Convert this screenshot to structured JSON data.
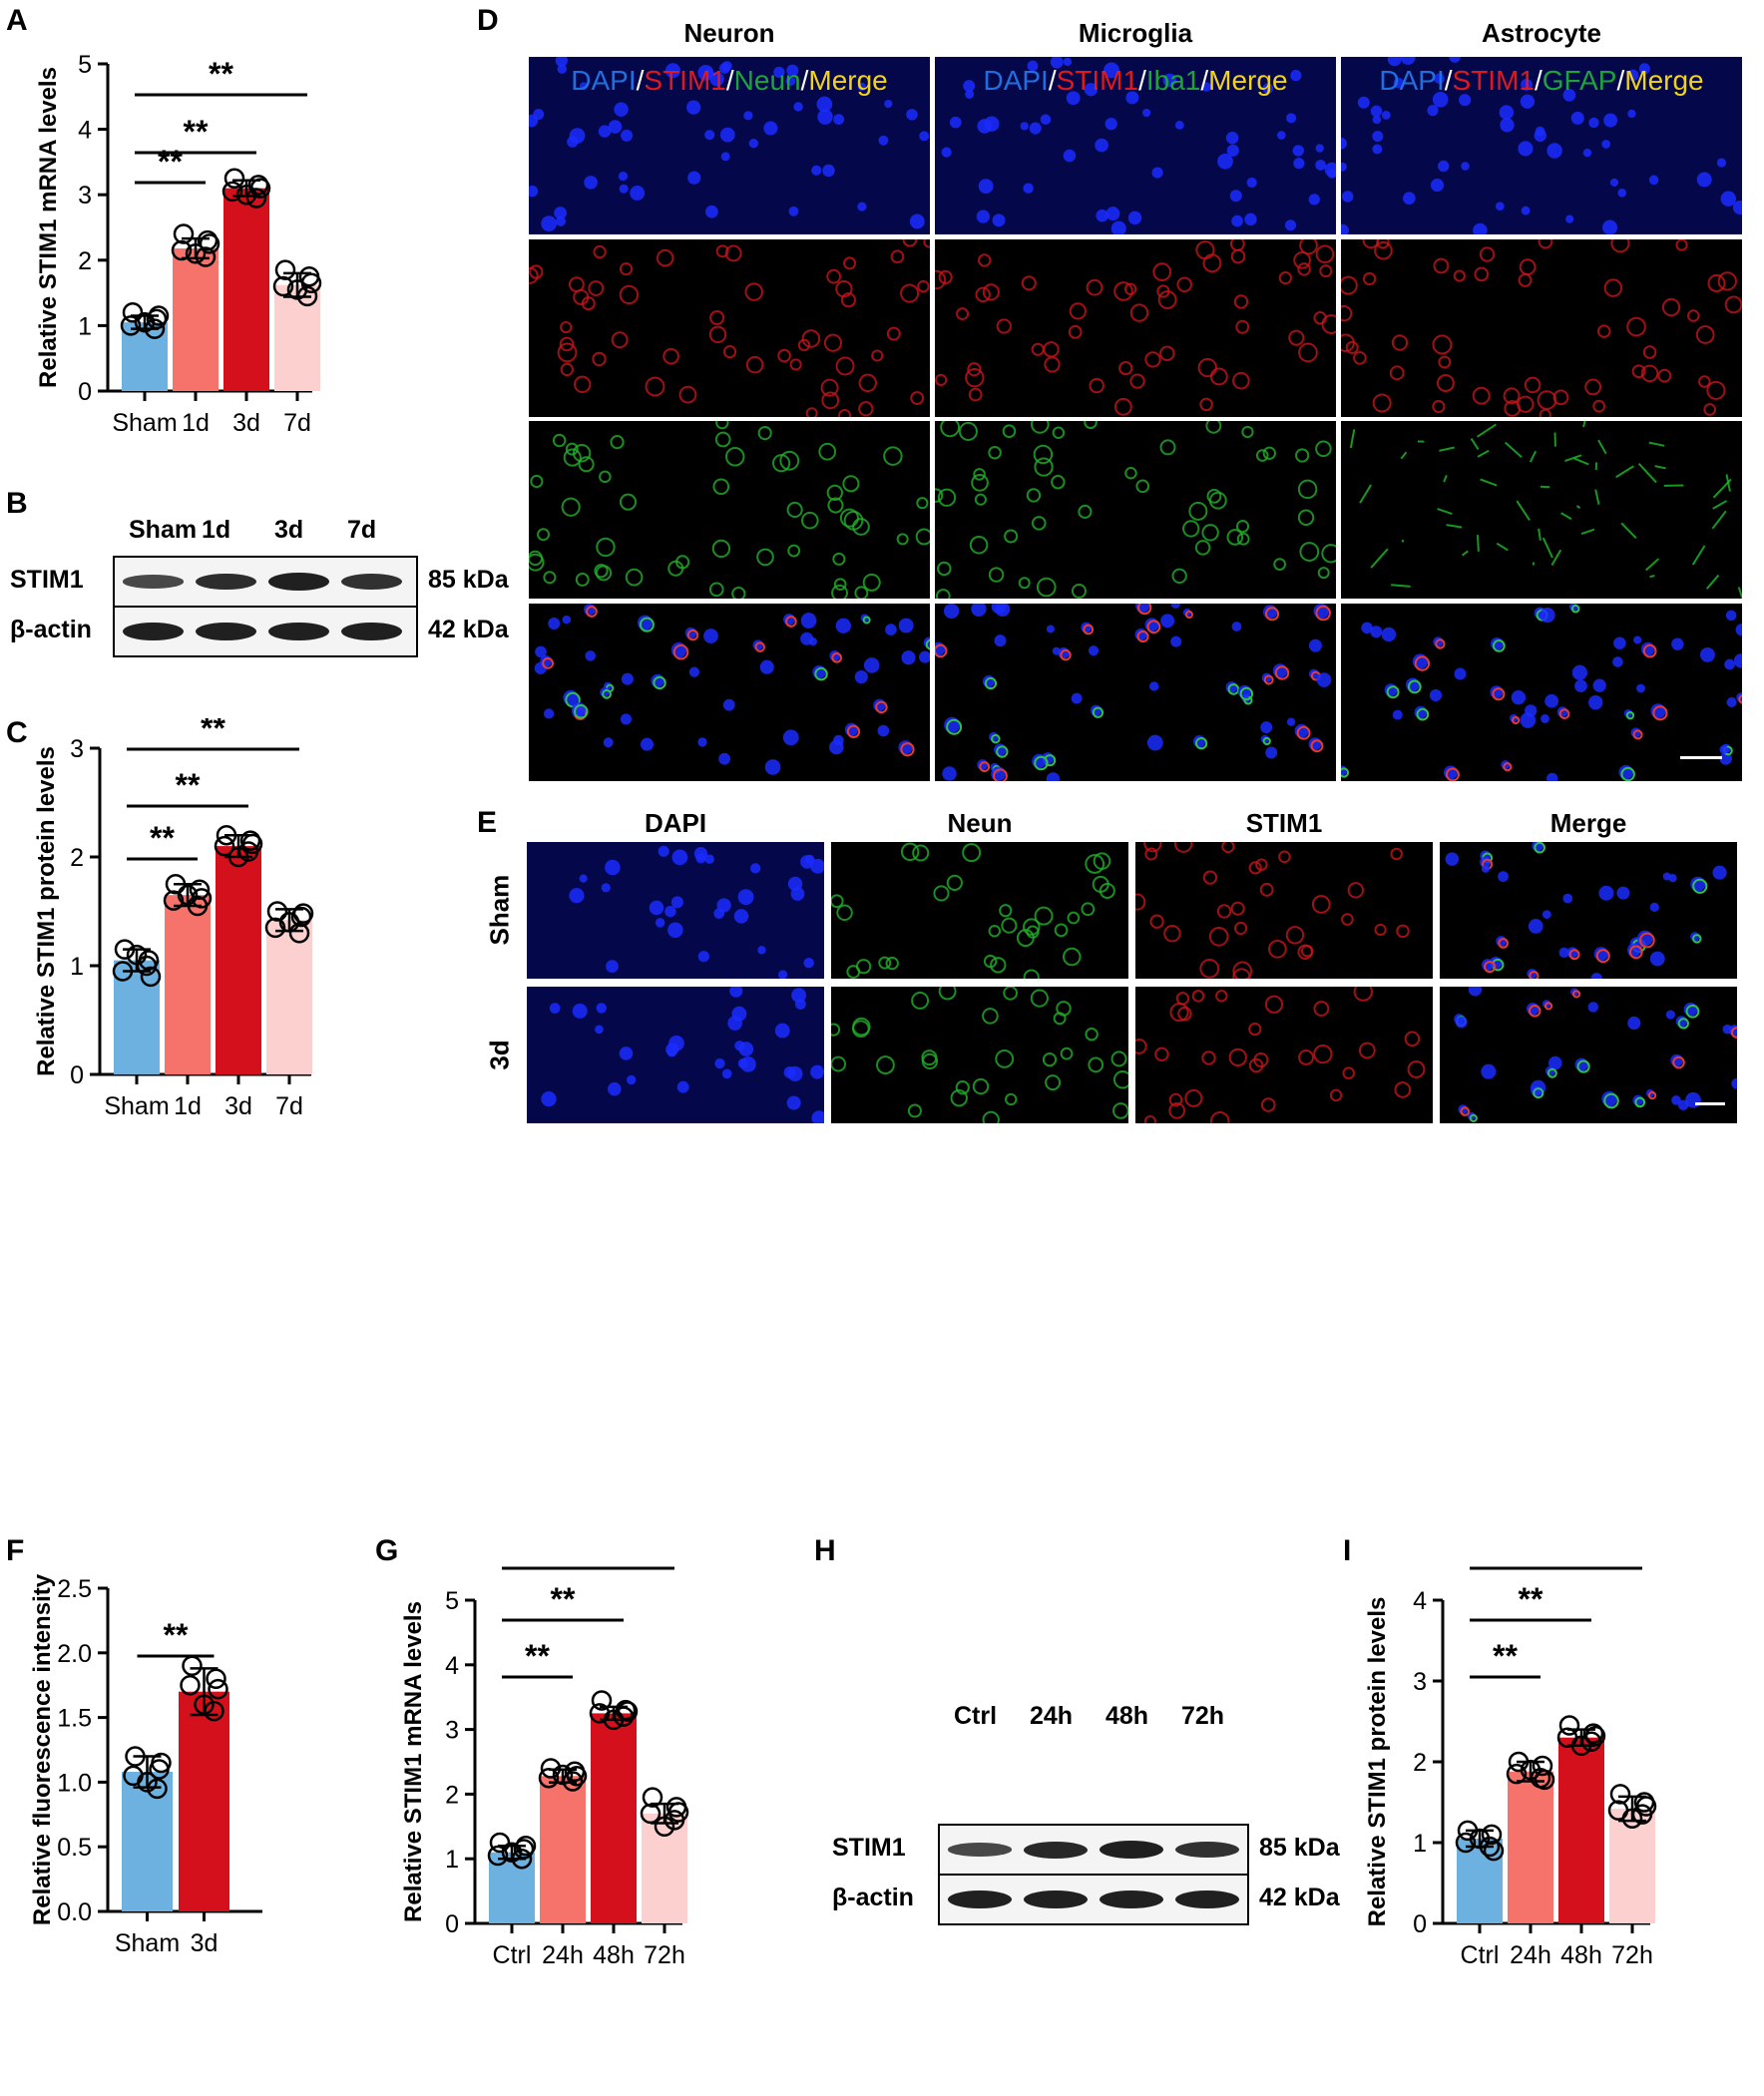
{
  "panels": {
    "A": "A",
    "B": "B",
    "C": "C",
    "D": "D",
    "E": "E",
    "F": "F",
    "G": "G",
    "H": "H",
    "I": "I"
  },
  "significance": "**",
  "colors": {
    "sham": "#6cb1e0",
    "early": "#f6736b",
    "peak": "#d4101c",
    "late": "#fbd0cf"
  },
  "western_B": {
    "lanes": [
      "Sham",
      "1d",
      "3d",
      "7d"
    ],
    "rows": [
      {
        "label": "STIM1",
        "kda": "85 kDa",
        "intensity": [
          0.55,
          0.85,
          1.0,
          0.8
        ]
      },
      {
        "label": "β-actin",
        "kda": "42 kDa",
        "intensity": [
          1.0,
          1.0,
          1.0,
          1.0
        ]
      }
    ]
  },
  "western_H": {
    "lanes": [
      "Ctrl",
      "24h",
      "48h",
      "72h"
    ],
    "rows": [
      {
        "label": "STIM1",
        "kda": "85 kDa",
        "intensity": [
          0.55,
          0.9,
          1.0,
          0.8
        ]
      },
      {
        "label": "β-actin",
        "kda": "42 kDa",
        "intensity": [
          1.0,
          1.0,
          1.0,
          1.0
        ]
      }
    ]
  },
  "panel_D": {
    "columns": [
      "Neuron",
      "Microglia",
      "Astrocyte"
    ],
    "channel_labels": [
      [
        {
          "t": "DAPI",
          "c": "#1f6fe0"
        },
        {
          "t": "/",
          "c": "#ffffff"
        },
        {
          "t": "STIM1",
          "c": "#e0191e"
        },
        {
          "t": "/",
          "c": "#ffffff"
        },
        {
          "t": "Neun",
          "c": "#1ea33a"
        },
        {
          "t": "/",
          "c": "#ffffff"
        },
        {
          "t": "Merge",
          "c": "#f1d21c"
        }
      ],
      [
        {
          "t": "DAPI",
          "c": "#1f6fe0"
        },
        {
          "t": "/",
          "c": "#ffffff"
        },
        {
          "t": "STIM1",
          "c": "#e0191e"
        },
        {
          "t": "/",
          "c": "#ffffff"
        },
        {
          "t": "Iba1",
          "c": "#1ea33a"
        },
        {
          "t": "/",
          "c": "#ffffff"
        },
        {
          "t": "Merge",
          "c": "#f1d21c"
        }
      ],
      [
        {
          "t": "DAPI",
          "c": "#1f6fe0"
        },
        {
          "t": "/",
          "c": "#ffffff"
        },
        {
          "t": "STIM1",
          "c": "#e0191e"
        },
        {
          "t": "/",
          "c": "#ffffff"
        },
        {
          "t": "GFAP",
          "c": "#1ea33a"
        },
        {
          "t": "/",
          "c": "#ffffff"
        },
        {
          "t": "Merge",
          "c": "#f1d21c"
        }
      ]
    ]
  },
  "panel_E": {
    "columns": [
      "DAPI",
      "Neun",
      "STIM1",
      "Merge"
    ],
    "rows": [
      "Sham",
      "3d"
    ]
  },
  "chart_data": [
    {
      "panel": "A",
      "type": "bar",
      "categories": [
        "Sham",
        "1d",
        "3d",
        "7d"
      ],
      "values": [
        1.05,
        2.18,
        3.1,
        1.62
      ],
      "errors": [
        0.1,
        0.15,
        0.12,
        0.18
      ],
      "points": [
        [
          1.2,
          1.1,
          1.0,
          0.95,
          1.05,
          1.15
        ],
        [
          2.4,
          2.3,
          2.15,
          2.05,
          2.1,
          2.25
        ],
        [
          3.25,
          3.15,
          3.05,
          2.95,
          3.0,
          3.1
        ],
        [
          1.85,
          1.75,
          1.6,
          1.45,
          1.55,
          1.65
        ]
      ],
      "ylabel": "Relative STIM1 mRNA levels",
      "ylim": [
        0,
        5
      ],
      "yticks": [
        "0",
        "1",
        "2",
        "3",
        "4",
        "5"
      ],
      "comparisons": [
        [
          0,
          1
        ],
        [
          0,
          2
        ],
        [
          0,
          3
        ]
      ]
    },
    {
      "panel": "C",
      "type": "bar",
      "categories": [
        "Sham",
        "1d",
        "3d",
        "7d"
      ],
      "values": [
        1.05,
        1.65,
        2.1,
        1.42
      ],
      "errors": [
        0.1,
        0.1,
        0.1,
        0.1
      ],
      "points": [
        [
          1.15,
          1.05,
          0.95,
          1.0,
          1.1,
          0.9
        ],
        [
          1.75,
          1.7,
          1.6,
          1.55,
          1.65,
          1.62
        ],
        [
          2.2,
          2.15,
          2.1,
          2.05,
          2.0,
          2.12
        ],
        [
          1.5,
          1.45,
          1.35,
          1.3,
          1.4,
          1.48
        ]
      ],
      "ylabel": "Relative STIM1 protein levels",
      "ylim": [
        0,
        3
      ],
      "yticks": [
        "0",
        "1",
        "2",
        "3"
      ],
      "comparisons": [
        [
          0,
          1
        ],
        [
          0,
          2
        ],
        [
          0,
          3
        ]
      ]
    },
    {
      "panel": "F",
      "type": "bar",
      "categories": [
        "Sham",
        "3d"
      ],
      "values": [
        1.08,
        1.7
      ],
      "errors": [
        0.12,
        0.18
      ],
      "points": [
        [
          1.2,
          1.1,
          1.05,
          0.95,
          1.0,
          1.15
        ],
        [
          1.9,
          1.8,
          1.75,
          1.55,
          1.6,
          1.72
        ]
      ],
      "ylabel": "Relative fluorescence intensity",
      "ylim": [
        0,
        2.5
      ],
      "yticks": [
        "0.0",
        "0.5",
        "1.0",
        "1.5",
        "2.0",
        "2.5"
      ],
      "comparisons": [
        [
          0,
          1
        ]
      ]
    },
    {
      "panel": "G",
      "type": "bar",
      "categories": [
        "Ctrl",
        "24h",
        "48h",
        "72h"
      ],
      "values": [
        1.1,
        2.28,
        3.25,
        1.7
      ],
      "errors": [
        0.1,
        0.1,
        0.1,
        0.15
      ],
      "points": [
        [
          1.25,
          1.15,
          1.05,
          1.0,
          1.1,
          1.2
        ],
        [
          2.4,
          2.35,
          2.25,
          2.2,
          2.3,
          2.28
        ],
        [
          3.45,
          3.3,
          3.25,
          3.2,
          3.15,
          3.28
        ],
        [
          1.95,
          1.8,
          1.7,
          1.6,
          1.5,
          1.72
        ]
      ],
      "ylabel": "Relative STIM1 mRNA levels",
      "ylim": [
        0,
        5
      ],
      "yticks": [
        "0",
        "1",
        "2",
        "3",
        "4",
        "5"
      ],
      "comparisons": [
        [
          0,
          1
        ],
        [
          0,
          2
        ],
        [
          0,
          3
        ]
      ]
    },
    {
      "panel": "I",
      "type": "bar",
      "categories": [
        "Ctrl",
        "24h",
        "48h",
        "72h"
      ],
      "values": [
        1.05,
        1.88,
        2.3,
        1.42
      ],
      "errors": [
        0.1,
        0.12,
        0.1,
        0.15
      ],
      "points": [
        [
          1.15,
          1.1,
          1.0,
          0.95,
          1.05,
          0.9
        ],
        [
          2.0,
          1.95,
          1.85,
          1.8,
          1.9,
          1.78
        ],
        [
          2.45,
          2.35,
          2.3,
          2.25,
          2.2,
          2.32
        ],
        [
          1.6,
          1.5,
          1.4,
          1.35,
          1.3,
          1.45
        ]
      ],
      "ylabel": "Relative STIM1 protein levels",
      "ylim": [
        0,
        4
      ],
      "yticks": [
        "0",
        "1",
        "2",
        "3",
        "4"
      ],
      "comparisons": [
        [
          0,
          1
        ],
        [
          0,
          2
        ],
        [
          0,
          3
        ]
      ]
    }
  ]
}
